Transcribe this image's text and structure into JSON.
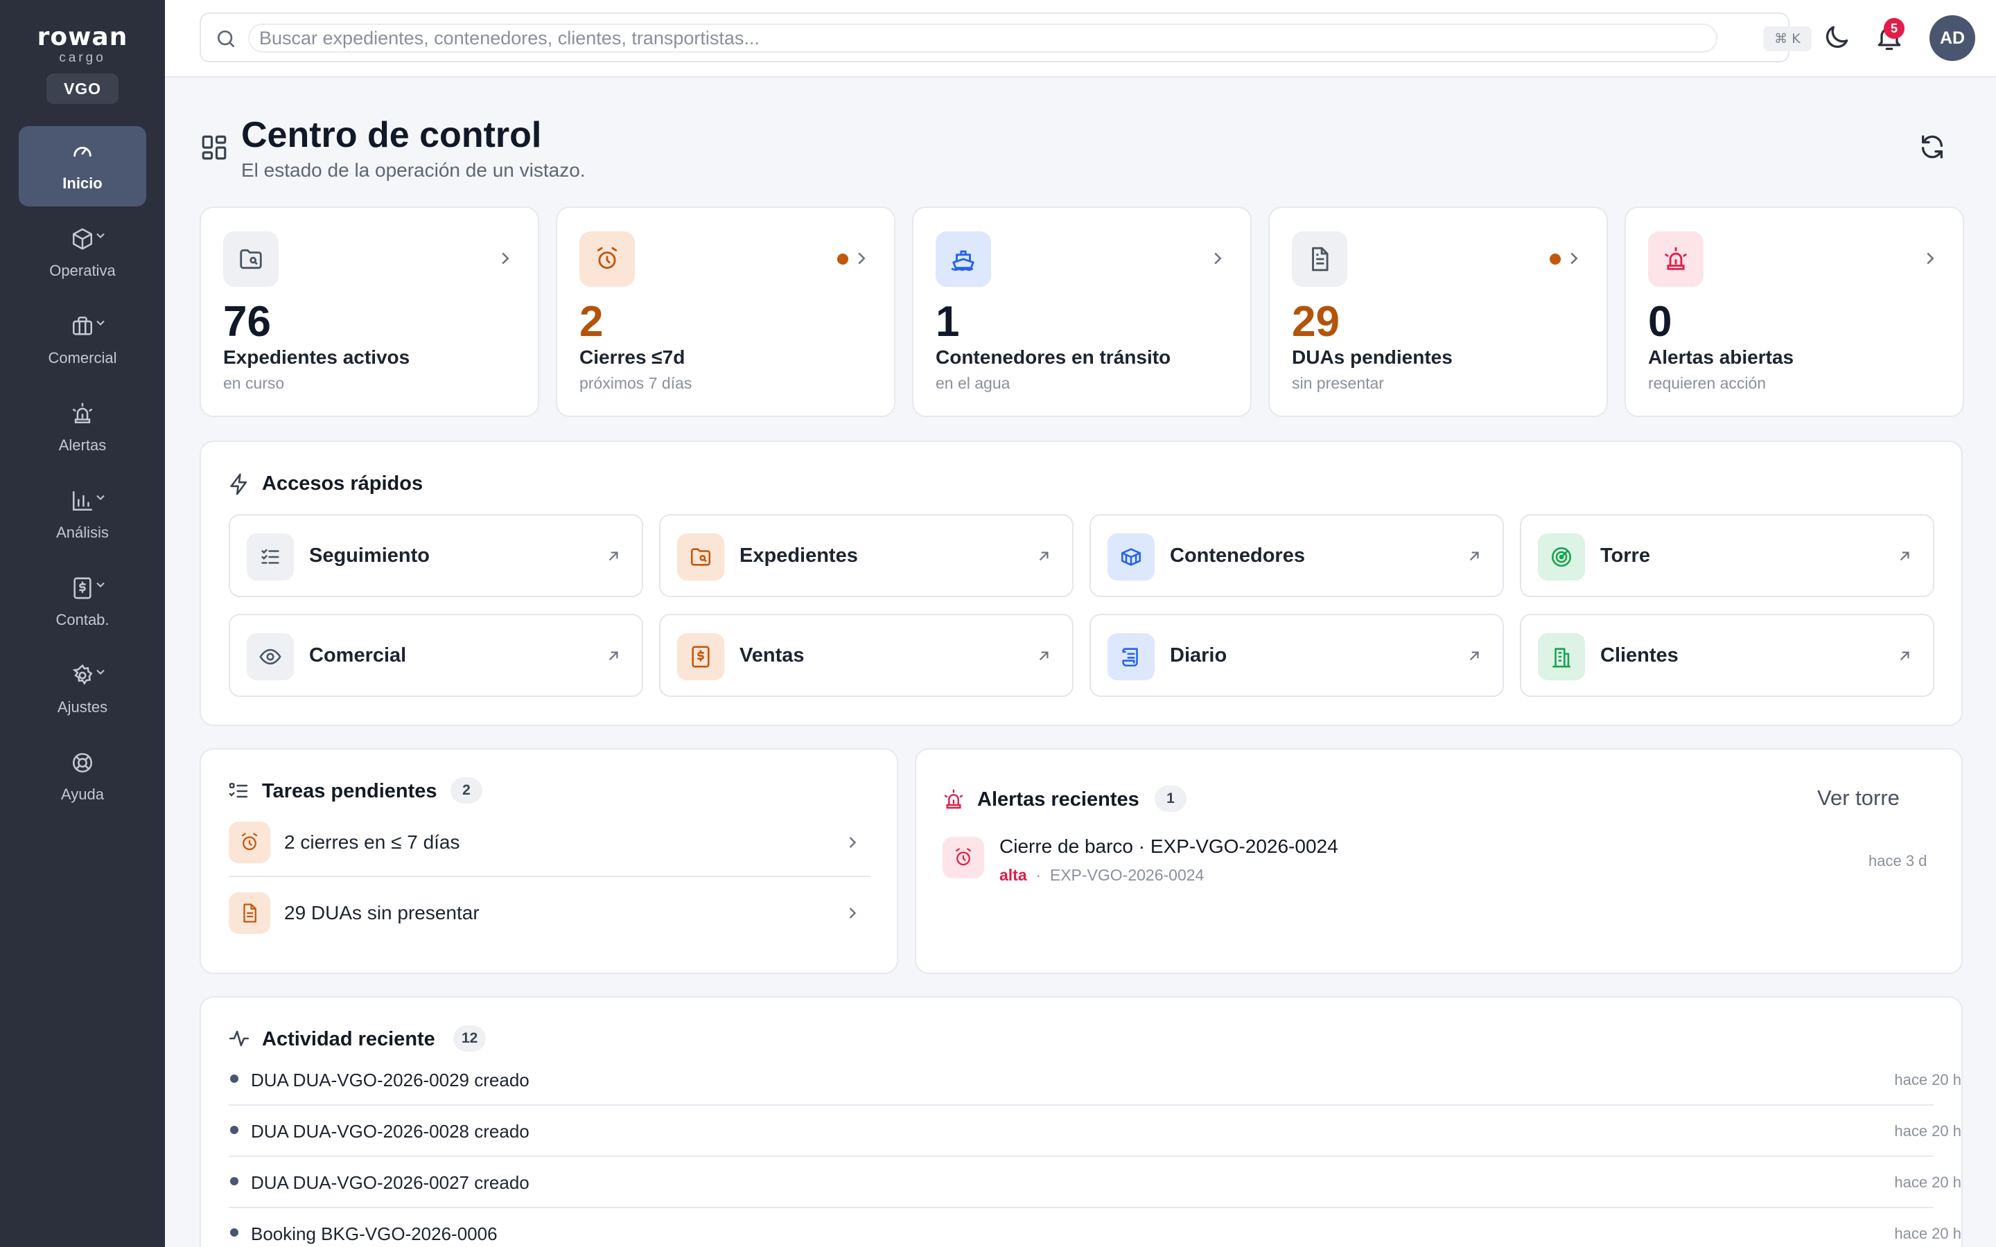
{
  "brand": {
    "name": "rowan",
    "sub": "cargo",
    "site": "VGO"
  },
  "nav": [
    {
      "label": "Inicio",
      "icon": "gauge-icon",
      "active": true
    },
    {
      "label": "Operativa",
      "icon": "box-icon"
    },
    {
      "label": "Comercial",
      "icon": "briefcase-icon"
    },
    {
      "label": "Alertas",
      "icon": "siren-icon"
    },
    {
      "label": "Análisis",
      "icon": "bar-chart-icon"
    },
    {
      "label": "Contab.",
      "icon": "invoice-icon"
    },
    {
      "label": "Ajustes",
      "icon": "gear-icon"
    },
    {
      "label": "Ayuda",
      "icon": "lifebuoy-icon"
    }
  ],
  "search": {
    "placeholder": "Buscar expedientes, contenedores, clientes, transportistas...",
    "shortcut": "⌘ K"
  },
  "top": {
    "notifications": "5",
    "avatar": "AD"
  },
  "page": {
    "title": "Centro de control",
    "subtitle": "El estado de la operación de un vistazo."
  },
  "kpis": [
    {
      "value": "76",
      "label": "Expedientes activos",
      "sub": "en curso",
      "flag": false,
      "accent": "#6b7280"
    },
    {
      "value": "2",
      "label": "Cierres ≤7d",
      "sub": "próximos 7 días",
      "flag": true,
      "accent": "#c2570c"
    },
    {
      "value": "1",
      "label": "Contenedores en tránsito",
      "sub": "en el agua",
      "flag": false,
      "accent": "#2563eb"
    },
    {
      "value": "29",
      "label": "DUAs pendientes",
      "sub": "sin presentar",
      "flag": true,
      "accent": "#6b7280"
    },
    {
      "value": "0",
      "label": "Alertas abiertas",
      "sub": "requieren acción",
      "flag": false,
      "accent": "#e11d48"
    }
  ],
  "quick": {
    "title": "Accesos rápidos",
    "items": [
      {
        "label": "Seguimiento",
        "icon": "checklist-icon"
      },
      {
        "label": "Expedientes",
        "icon": "folder-search-icon"
      },
      {
        "label": "Contenedores",
        "icon": "container-icon"
      },
      {
        "label": "Torre",
        "icon": "radar-icon"
      },
      {
        "label": "Comercial",
        "icon": "eye-icon"
      },
      {
        "label": "Ventas",
        "icon": "receipt-icon"
      },
      {
        "label": "Diario",
        "icon": "scroll-icon"
      },
      {
        "label": "Clientes",
        "icon": "building-icon"
      }
    ]
  },
  "tasks": {
    "title": "Tareas pendientes",
    "count": "2",
    "items": [
      {
        "label": "2 cierres en ≤ 7 días",
        "icon": "alarm-clock-icon"
      },
      {
        "label": "29 DUAs sin presentar",
        "icon": "document-icon"
      }
    ]
  },
  "alerts": {
    "title": "Alertas recientes",
    "count": "1",
    "action": "Ver torre",
    "items": [
      {
        "title": "Cierre de barco · EXP-VGO-2026-0024",
        "severity": "alta",
        "ref": "EXP-VGO-2026-0024",
        "time": "hace 3 d"
      }
    ]
  },
  "activity": {
    "title": "Actividad reciente",
    "count": "12",
    "items": [
      {
        "text": "DUA DUA-VGO-2026-0029 creado",
        "time": "hace 20 h"
      },
      {
        "text": "DUA DUA-VGO-2026-0028 creado",
        "time": "hace 20 h"
      },
      {
        "text": "DUA DUA-VGO-2026-0027 creado",
        "time": "hace 20 h"
      },
      {
        "text": "Booking BKG-VGO-2026-0006",
        "time": "hace 20 h"
      }
    ]
  }
}
